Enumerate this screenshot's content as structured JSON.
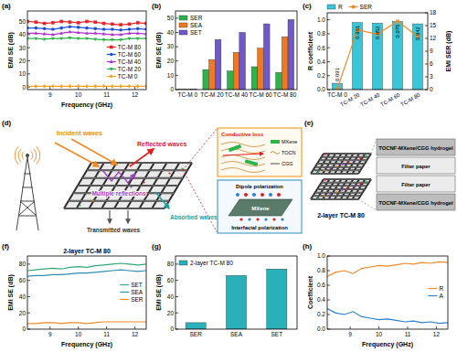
{
  "panel_labels": [
    "(a)",
    "(b)",
    "(c)",
    "(d)",
    "(e)",
    "(f)",
    "(g)",
    "(h)"
  ],
  "chart_data": [
    {
      "type": "line",
      "x_label": "Frequency (GHz)",
      "y_label": "EMI SE (dB)",
      "x": [
        8.2,
        8.5,
        8.8,
        9.1,
        9.4,
        9.7,
        10.0,
        10.3,
        10.6,
        10.9,
        11.2,
        11.5,
        11.8,
        12.1,
        12.4
      ],
      "xlim": [
        8.2,
        12.4
      ],
      "xticks": [
        9,
        10,
        11,
        12
      ],
      "ylim": [
        -2,
        58
      ],
      "yticks": [
        0,
        10,
        20,
        30,
        40,
        50
      ],
      "legend": "lower right",
      "series": [
        {
          "name": "TC-M 80",
          "color": "#e8242a",
          "marker": "square",
          "values": [
            50,
            49.5,
            48.5,
            49,
            50,
            49.5,
            49,
            50,
            49.5,
            48.5,
            48,
            47.5,
            48,
            49,
            48.5
          ]
        },
        {
          "name": "TC-M 60",
          "color": "#1f4fd8",
          "marker": "circle",
          "values": [
            45,
            45,
            44.5,
            44,
            45,
            46,
            45.5,
            45,
            44.5,
            44,
            44,
            43.5,
            44,
            44.5,
            44
          ]
        },
        {
          "name": "TC-M 40",
          "color": "#b030d0",
          "marker": "triangle",
          "values": [
            41,
            41,
            40.5,
            40,
            41,
            42,
            41.5,
            41,
            41,
            40.5,
            40,
            40,
            41,
            41,
            40.5
          ]
        },
        {
          "name": "TC-M 20",
          "color": "#2cb34a",
          "marker": "triangle-down",
          "values": [
            37,
            37,
            36.5,
            37,
            37,
            37.5,
            37,
            37,
            36.5,
            36,
            36,
            36,
            37,
            37,
            37
          ]
        },
        {
          "name": "TC-M 0",
          "color": "#f5a020",
          "marker": "diamond",
          "values": [
            0.6,
            0.5,
            0.5,
            0.6,
            0.5,
            0.5,
            0.6,
            0.5,
            0.5,
            0.6,
            0.5,
            0.5,
            0.6,
            0.5,
            0.5
          ]
        }
      ]
    },
    {
      "type": "bar",
      "y_label": "EMI SE (dB)",
      "categories": [
        "TC-M 0",
        "TC-M 20",
        "TC-M 40",
        "TC-M 60",
        "TC-M 80"
      ],
      "ylim": [
        0,
        55
      ],
      "yticks": [
        0,
        10,
        20,
        30,
        40,
        50
      ],
      "legend": "upper left",
      "series": [
        {
          "name": "SER",
          "color": "#2cb34a",
          "values": [
            0.3,
            14,
            13,
            16,
            12
          ]
        },
        {
          "name": "SEA",
          "color": "#f07820",
          "values": [
            0.2,
            21,
            26,
            29,
            37
          ]
        },
        {
          "name": "SET",
          "color": "#7058c8",
          "values": [
            0.5,
            35,
            40,
            46,
            49
          ]
        }
      ]
    },
    {
      "type": "bar",
      "y_label": "R coefficient",
      "y2_label": "EMI SER (dB)",
      "categories": [
        "TC-M 0",
        "TC-M 20",
        "TC-M 40",
        "TC-M 60",
        "TC-M 80"
      ],
      "ylim": [
        0,
        1.1
      ],
      "yticks": [
        {
          "value": 0,
          "label": "0.0"
        },
        0.2,
        0.4,
        0.6,
        0.8,
        {
          "value": 1,
          "label": "1.0"
        }
      ],
      "y2lim": [
        0,
        18
      ],
      "y2ticks": [
        0,
        3,
        6,
        9,
        12,
        15,
        18
      ],
      "legend": "top",
      "data_labels": true,
      "series": [
        {
          "name": "R",
          "color": "#38c6d8",
          "values": [
            0.091,
            0.961,
            0.952,
            0.975,
            0.942
          ]
        },
        {
          "name": "SER",
          "type": "line",
          "axis": "y2",
          "marker": "square",
          "color": "#f08a24",
          "values": [
            0.2,
            14,
            13,
            16,
            12.5
          ]
        }
      ]
    },
    {
      "type": "line",
      "title": "2-layer TC-M 80",
      "x_label": "Frequency (GHz)",
      "y_label": "EMI SE (dB)",
      "x": [
        8.2,
        8.5,
        8.8,
        9.1,
        9.4,
        9.7,
        10.0,
        10.3,
        10.6,
        10.9,
        11.2,
        11.5,
        11.8,
        12.1,
        12.4
      ],
      "xlim": [
        8.2,
        12.4
      ],
      "xticks": [
        9,
        10,
        11,
        12
      ],
      "ylim": [
        0,
        90
      ],
      "yticks": [
        0,
        20,
        40,
        60,
        80
      ],
      "legend": "center right",
      "series": [
        {
          "name": "SET",
          "color": "#32a87a",
          "values": [
            72,
            73,
            74,
            75,
            74,
            76,
            77,
            76,
            78,
            79,
            80,
            81,
            80,
            79,
            80
          ]
        },
        {
          "name": "SEA",
          "color": "#2f8fb0",
          "values": [
            65,
            66,
            66,
            67,
            67,
            68,
            69,
            69,
            70,
            71,
            72,
            73,
            72,
            71,
            72
          ]
        },
        {
          "name": "SER",
          "color": "#f08a24",
          "values": [
            7,
            7,
            8,
            8,
            7,
            8,
            8,
            7,
            8,
            9,
            9,
            9,
            9,
            9,
            9
          ]
        }
      ]
    },
    {
      "type": "bar",
      "y_label": "EMI SE (dB)",
      "categories": [
        "SER",
        "SEA",
        "SET"
      ],
      "ylim": [
        0,
        90
      ],
      "yticks": [
        0,
        20,
        40,
        60,
        80
      ],
      "legend": "upper left",
      "series": [
        {
          "name": "2-layer TC-M 80",
          "color": "#2ab0b8",
          "values": [
            8,
            66,
            74
          ]
        }
      ]
    },
    {
      "type": "line",
      "x_label": "Frequency (GHz)",
      "y_label": "Coefficient",
      "x": [
        8.2,
        8.5,
        8.8,
        9.1,
        9.4,
        9.7,
        10.0,
        10.3,
        10.6,
        10.9,
        11.2,
        11.5,
        11.8,
        12.1,
        12.4
      ],
      "xlim": [
        8.2,
        12.4
      ],
      "xticks": [
        9,
        10,
        11,
        12
      ],
      "ylim": [
        0,
        1
      ],
      "yticks": [
        {
          "value": 0,
          "label": "0.0"
        },
        0.2,
        0.4,
        0.6,
        0.8,
        {
          "value": 1,
          "label": "1.0"
        }
      ],
      "legend": "center right",
      "series": [
        {
          "name": "R",
          "color": "#f08a24",
          "values": [
            0.72,
            0.78,
            0.8,
            0.76,
            0.83,
            0.85,
            0.87,
            0.86,
            0.88,
            0.9,
            0.89,
            0.91,
            0.9,
            0.92,
            0.91
          ]
        },
        {
          "name": "A",
          "color": "#2f7fd0",
          "values": [
            0.28,
            0.22,
            0.2,
            0.24,
            0.17,
            0.15,
            0.13,
            0.14,
            0.12,
            0.1,
            0.11,
            0.09,
            0.1,
            0.08,
            0.09
          ]
        }
      ]
    }
  ],
  "diagram_d": {
    "waves": [
      "Incident waves",
      "Reflected waves",
      "Multiple reflections",
      "Absorbed waves",
      "Transmitted waves"
    ],
    "inset_loss": {
      "title": "Conductive loss",
      "legend": [
        "MXene",
        "TOCN",
        "CGG"
      ]
    },
    "inset_polarization": {
      "labels": [
        "Dipole polarization",
        "Interfacial polarization"
      ],
      "sheet": "MXene"
    }
  },
  "diagram_e": {
    "title": "2-layer TC-M 80",
    "layers": [
      "TOCNF-MXene/CGG hydrogel",
      "Filter paper",
      "Filter paper",
      "TOCNF-MXene/CGG hydrogel"
    ]
  }
}
